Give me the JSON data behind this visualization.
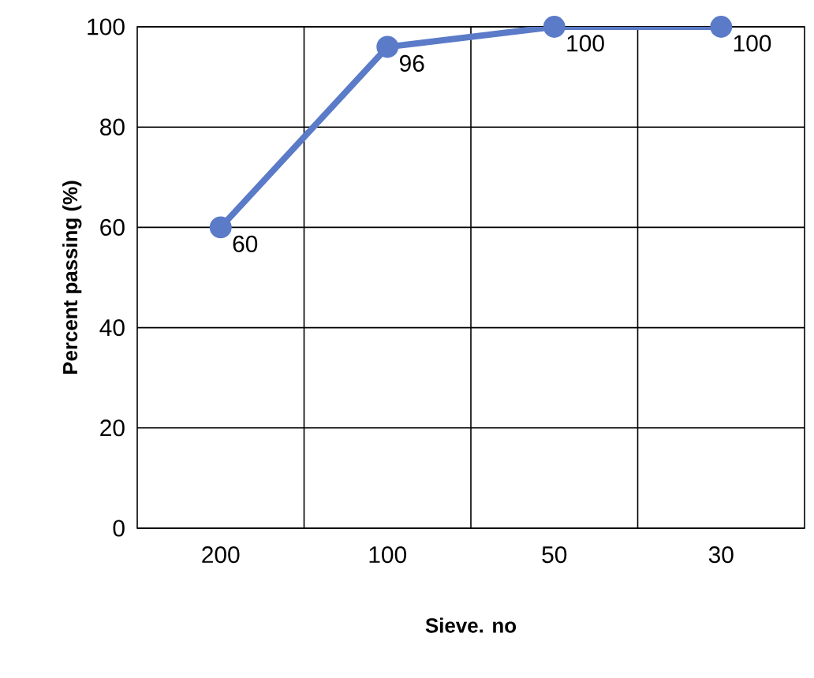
{
  "chart_data": {
    "type": "line",
    "xlabel": "Sieve. no",
    "ylabel": "Percent passing (%)",
    "categories": [
      "200",
      "100",
      "50",
      "30"
    ],
    "values": [
      60,
      96,
      100,
      100
    ],
    "color": "#5b7bc8",
    "ylim": [
      0,
      100
    ],
    "yticks": [
      0,
      20,
      40,
      60,
      80,
      100
    ],
    "grid": true,
    "data_labels": true,
    "marker": "circle",
    "line_style": "solid"
  }
}
